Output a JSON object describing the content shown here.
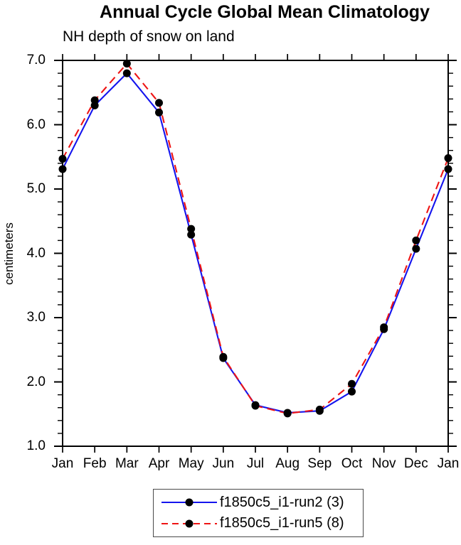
{
  "chart_data": {
    "type": "line",
    "title": "Annual Cycle Global Mean Climatology",
    "subtitle": "NH depth of snow on land",
    "ylabel": "centimeters",
    "categories": [
      "Jan",
      "Feb",
      "Mar",
      "Apr",
      "May",
      "Jun",
      "Jul",
      "Aug",
      "Sep",
      "Oct",
      "Nov",
      "Dec",
      "Jan"
    ],
    "ylim": [
      1.0,
      7.0
    ],
    "ytick_major_step": 1.0,
    "ytick_minor_step": 0.2,
    "grid": false,
    "legend_position": "bottom-center",
    "axis_color": "#000000",
    "marker_color": "#000000",
    "series": [
      {
        "name": "f1850c5_i1-run2 (3)",
        "color": "#1414ee",
        "line_style": "solid",
        "marker": "filled-circle",
        "values": [
          5.31,
          6.3,
          6.8,
          6.19,
          4.29,
          2.37,
          1.64,
          1.52,
          1.55,
          1.85,
          2.82,
          4.07,
          5.31
        ]
      },
      {
        "name": "f1850c5_i1-run5 (8)",
        "color": "#ee1414",
        "line_style": "dashed",
        "marker": "filled-circle",
        "values": [
          5.47,
          6.38,
          6.95,
          6.34,
          4.38,
          2.39,
          1.63,
          1.51,
          1.57,
          1.97,
          2.85,
          4.2,
          5.48
        ]
      }
    ]
  }
}
